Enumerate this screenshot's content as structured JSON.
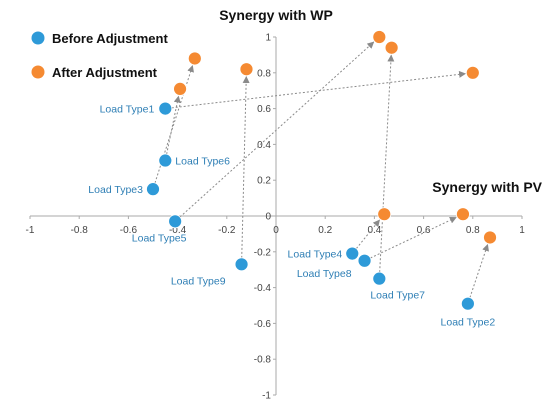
{
  "chart_data": {
    "type": "scatter",
    "xlabel": "Synergy with PV",
    "ylabel": "Synergy with WP",
    "xlim": [
      -1,
      1
    ],
    "ylim": [
      -1,
      1
    ],
    "x_ticks": [
      -1,
      -0.8,
      -0.6,
      -0.4,
      -0.2,
      0,
      0.2,
      0.4,
      0.6,
      0.8,
      1
    ],
    "y_ticks": [
      -1,
      -0.8,
      -0.6,
      -0.4,
      -0.2,
      0,
      0.2,
      0.4,
      0.6,
      0.8,
      1
    ],
    "x_tick_labels": [
      "-1",
      "-0.8",
      "-0.6",
      "-0.4",
      "-0.2",
      "0",
      "0.2",
      "0.4",
      "0.6",
      "0.8",
      "1"
    ],
    "y_tick_labels": [
      "-1",
      "-0.8",
      "-0.6",
      "-0.4",
      "-0.2",
      "0",
      "0.2",
      "0.4",
      "0.6",
      "0.8",
      "1"
    ],
    "grid": false,
    "legend_position": "top-left",
    "colors": {
      "before": "#2e9ad8",
      "after": "#f58a32",
      "arrow": "#8a8a8a",
      "label": "#2f7fb5"
    },
    "series": [
      {
        "name": "Before Adjustment",
        "points": [
          {
            "label": "Load Type1",
            "x": -0.45,
            "y": 0.6
          },
          {
            "label": "Load Type2",
            "x": 0.78,
            "y": -0.49
          },
          {
            "label": "Load Type3",
            "x": -0.5,
            "y": 0.15
          },
          {
            "label": "Load Type4",
            "x": 0.31,
            "y": -0.21
          },
          {
            "label": "Load Type5",
            "x": -0.41,
            "y": -0.03
          },
          {
            "label": "Load Type6",
            "x": -0.45,
            "y": 0.31
          },
          {
            "label": "Load Type7",
            "x": 0.42,
            "y": -0.35
          },
          {
            "label": "Load Type8",
            "x": 0.36,
            "y": -0.25
          },
          {
            "label": "Load Type9",
            "x": -0.14,
            "y": -0.27
          }
        ]
      },
      {
        "name": "After Adjustment",
        "points": [
          {
            "label": "Load Type1",
            "x": 0.8,
            "y": 0.8
          },
          {
            "label": "Load Type2",
            "x": 0.87,
            "y": -0.12
          },
          {
            "label": "Load Type3",
            "x": -0.33,
            "y": 0.88
          },
          {
            "label": "Load Type4",
            "x": 0.44,
            "y": 0.01
          },
          {
            "label": "Load Type5",
            "x": 0.42,
            "y": 1.0
          },
          {
            "label": "Load Type6",
            "x": -0.39,
            "y": 0.71
          },
          {
            "label": "Load Type7",
            "x": 0.47,
            "y": 0.94
          },
          {
            "label": "Load Type8",
            "x": 0.76,
            "y": 0.01
          },
          {
            "label": "Load Type9",
            "x": -0.12,
            "y": 0.82
          }
        ]
      }
    ]
  }
}
